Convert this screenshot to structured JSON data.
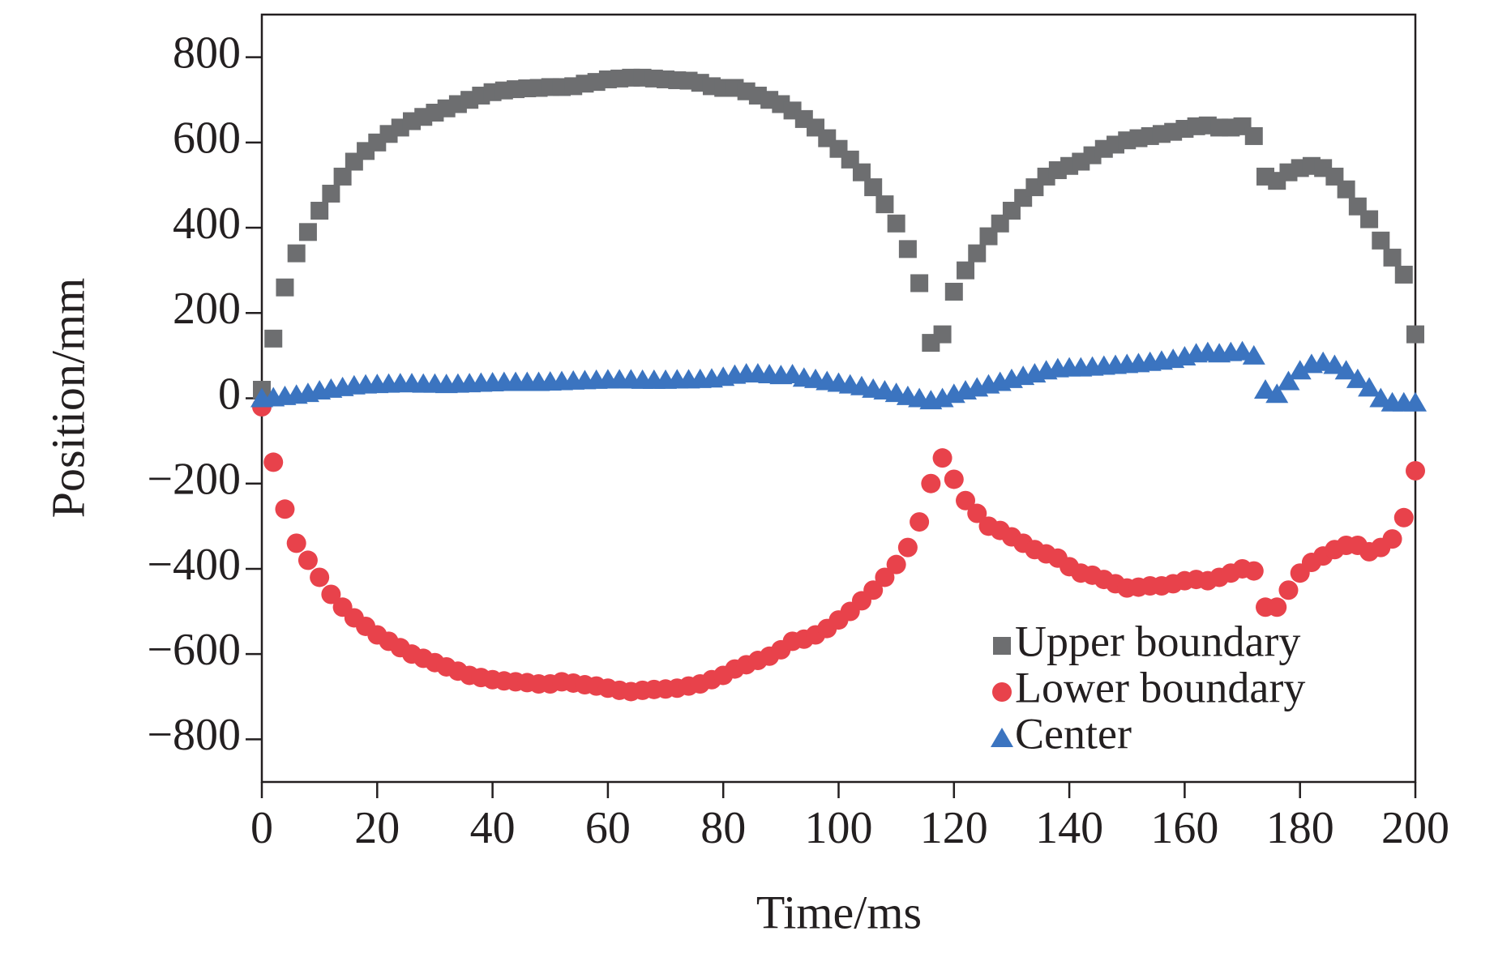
{
  "chart_data": {
    "type": "scatter",
    "xlabel": "Time/ms",
    "ylabel": "Position/mm",
    "xlim": [
      0,
      200
    ],
    "ylim": [
      -900,
      900
    ],
    "xticks": [
      0,
      20,
      40,
      60,
      80,
      100,
      120,
      140,
      160,
      180,
      200
    ],
    "yticks": [
      {
        "value": -800,
        "label": "−800"
      },
      {
        "value": -600,
        "label": "−600"
      },
      {
        "value": -400,
        "label": "−400"
      },
      {
        "value": -200,
        "label": "−200"
      },
      0,
      200,
      400,
      600,
      800
    ],
    "legend": "lower right",
    "x": [
      0,
      2,
      4,
      6,
      8,
      10,
      12,
      14,
      16,
      18,
      20,
      22,
      24,
      26,
      28,
      30,
      32,
      34,
      36,
      38,
      40,
      42,
      44,
      46,
      48,
      50,
      52,
      54,
      56,
      58,
      60,
      62,
      64,
      66,
      68,
      70,
      72,
      74,
      76,
      78,
      80,
      82,
      84,
      86,
      88,
      90,
      92,
      94,
      96,
      98,
      100,
      102,
      104,
      106,
      108,
      110,
      112,
      114,
      116,
      118,
      120,
      122,
      124,
      126,
      128,
      130,
      132,
      134,
      136,
      138,
      140,
      142,
      144,
      146,
      148,
      150,
      152,
      154,
      156,
      158,
      160,
      162,
      164,
      166,
      168,
      170,
      172,
      174,
      176,
      178,
      180,
      182,
      184,
      186,
      188,
      190,
      192,
      194,
      196,
      198,
      200
    ],
    "series": [
      {
        "name": "Upper boundary",
        "color": "#6d6e70",
        "marker": "square",
        "values": [
          20,
          140,
          260,
          340,
          390,
          440,
          480,
          520,
          555,
          580,
          600,
          620,
          635,
          650,
          660,
          670,
          680,
          690,
          700,
          710,
          718,
          722,
          725,
          727,
          728,
          730,
          730,
          732,
          738,
          742,
          748,
          750,
          752,
          752,
          750,
          748,
          746,
          745,
          740,
          732,
          728,
          728,
          720,
          710,
          700,
          690,
          675,
          655,
          635,
          610,
          585,
          560,
          530,
          495,
          455,
          410,
          350,
          270,
          130,
          150,
          250,
          300,
          340,
          380,
          410,
          440,
          470,
          495,
          520,
          535,
          545,
          555,
          570,
          585,
          595,
          605,
          610,
          615,
          620,
          625,
          632,
          638,
          640,
          635,
          635,
          638,
          615,
          520,
          510,
          530,
          540,
          545,
          540,
          520,
          490,
          450,
          420,
          370,
          330,
          290,
          150
        ]
      },
      {
        "name": "Lower boundary",
        "color": "#e8424b",
        "marker": "circle",
        "values": [
          -20,
          -150,
          -260,
          -340,
          -380,
          -420,
          -460,
          -490,
          -515,
          -535,
          -555,
          -570,
          -585,
          -600,
          -610,
          -620,
          -630,
          -640,
          -650,
          -655,
          -660,
          -663,
          -665,
          -667,
          -670,
          -670,
          -665,
          -668,
          -672,
          -675,
          -680,
          -685,
          -688,
          -685,
          -683,
          -682,
          -680,
          -675,
          -670,
          -660,
          -650,
          -635,
          -625,
          -615,
          -605,
          -590,
          -570,
          -565,
          -555,
          -540,
          -520,
          -500,
          -475,
          -450,
          -420,
          -390,
          -350,
          -290,
          -200,
          -140,
          -190,
          -240,
          -270,
          -300,
          -310,
          -325,
          -340,
          -355,
          -365,
          -375,
          -395,
          -410,
          -415,
          -425,
          -435,
          -445,
          -443,
          -440,
          -440,
          -435,
          -428,
          -425,
          -428,
          -420,
          -410,
          -400,
          -405,
          -490,
          -490,
          -450,
          -410,
          -385,
          -370,
          -355,
          -345,
          -345,
          -360,
          -350,
          -330,
          -280,
          -170
        ]
      },
      {
        "name": "Center",
        "color": "#3b74c0",
        "marker": "triangle",
        "values": [
          0,
          2,
          5,
          8,
          12,
          18,
          22,
          26,
          30,
          32,
          33,
          34,
          35,
          35,
          34,
          34,
          33,
          34,
          35,
          36,
          37,
          38,
          38,
          38,
          38,
          39,
          40,
          41,
          42,
          43,
          44,
          44,
          44,
          43,
          43,
          43,
          44,
          44,
          45,
          46,
          50,
          55,
          58,
          58,
          56,
          54,
          56,
          48,
          45,
          40,
          36,
          32,
          28,
          22,
          18,
          12,
          5,
          0,
          -5,
          0,
          10,
          18,
          25,
          32,
          38,
          45,
          52,
          58,
          65,
          70,
          72,
          72,
          74,
          76,
          78,
          80,
          82,
          85,
          88,
          92,
          98,
          105,
          108,
          105,
          108,
          110,
          100,
          20,
          10,
          40,
          65,
          80,
          85,
          78,
          65,
          45,
          25,
          0,
          -10,
          -10,
          -10
        ]
      }
    ]
  }
}
